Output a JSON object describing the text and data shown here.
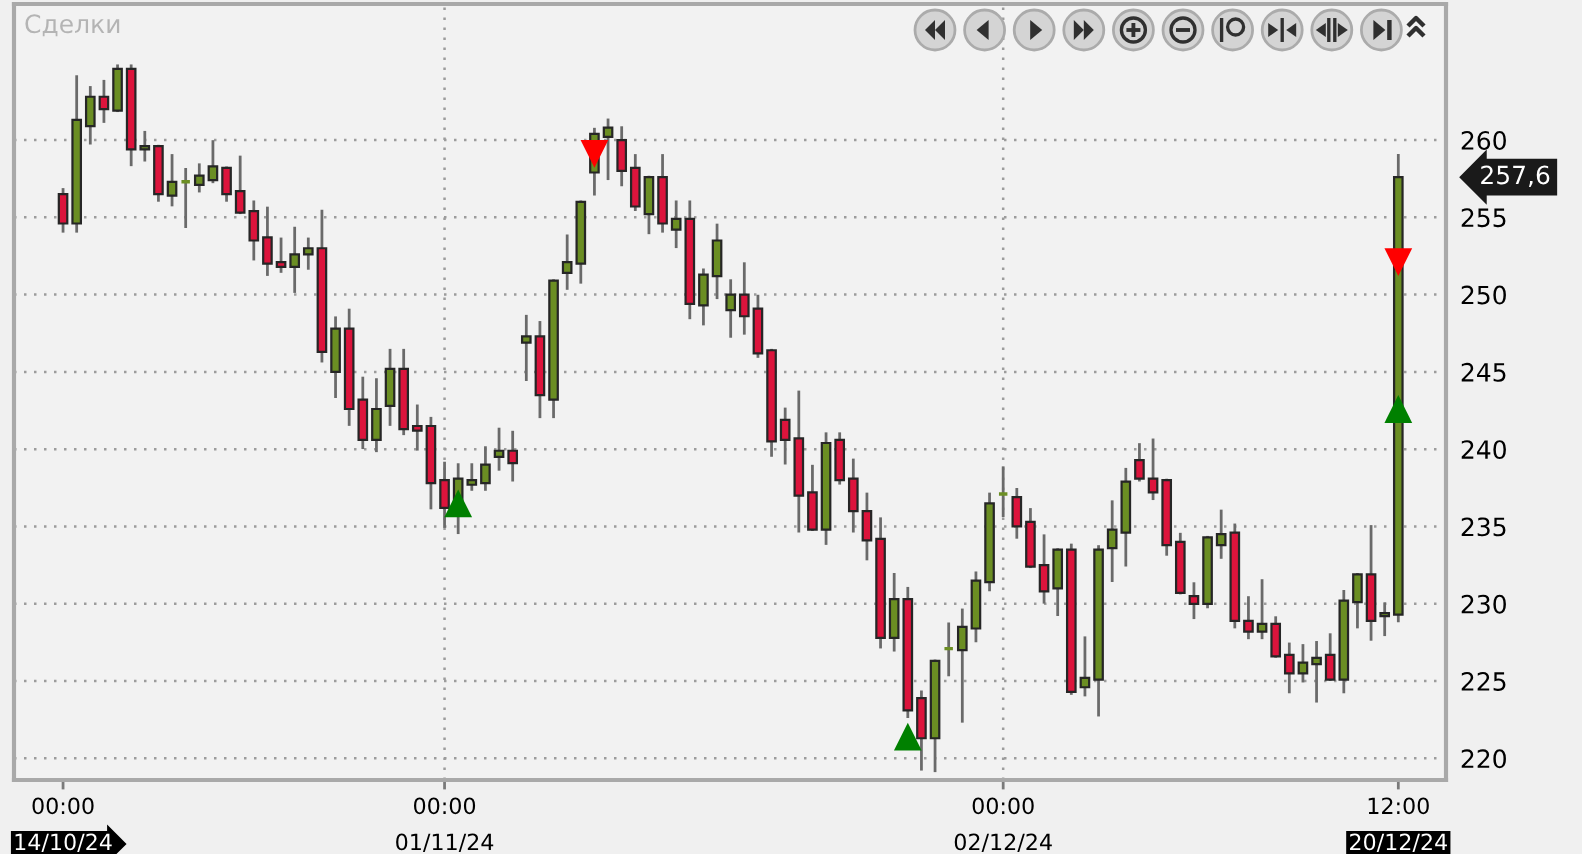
{
  "chart_data": {
    "type": "candlestick",
    "categories": [
      "00:00\n14/10/24",
      null,
      null,
      null,
      null,
      null,
      null,
      null,
      null,
      null,
      null,
      null,
      null,
      null,
      null,
      null,
      null,
      null,
      null,
      null,
      null,
      null,
      null,
      null,
      null,
      null,
      null,
      null,
      "00:00\n01/11/24",
      null,
      null,
      null,
      null,
      null,
      null,
      null,
      null,
      null,
      null,
      null,
      null,
      null,
      null,
      null,
      null,
      null,
      null,
      null,
      null,
      null,
      null,
      null,
      null,
      null,
      null,
      null,
      null,
      null,
      null,
      null,
      null,
      null,
      null,
      null,
      null,
      null,
      null,
      null,
      null,
      "00:00\n02/12/24",
      null,
      null,
      null,
      null,
      null,
      null,
      null,
      null,
      null,
      null,
      null,
      null,
      null,
      null,
      null,
      null,
      null,
      null,
      null,
      null,
      null,
      null,
      null,
      null,
      null,
      null,
      null,
      null,
      "12:00\n20/12/24"
    ],
    "ohlc": [
      [
        256.5,
        256.8,
        254.1,
        254.6
      ],
      [
        254.6,
        264.1,
        254.1,
        261.3
      ],
      [
        260.9,
        263.4,
        259.8,
        262.8
      ],
      [
        262.8,
        263.8,
        261.2,
        262.0
      ],
      [
        261.9,
        264.8,
        261.9,
        264.6
      ],
      [
        264.6,
        264.8,
        258.4,
        259.4
      ],
      [
        259.4,
        260.5,
        258.7,
        259.6
      ],
      [
        259.6,
        259.6,
        256.1,
        256.5
      ],
      [
        256.4,
        259.0,
        255.8,
        257.3
      ],
      [
        257.3,
        258.1,
        254.4,
        257.3
      ],
      [
        257.1,
        258.4,
        256.7,
        257.7
      ],
      [
        257.4,
        259.9,
        257.3,
        258.3
      ],
      [
        258.2,
        258.2,
        256.1,
        256.5
      ],
      [
        256.7,
        258.9,
        255.3,
        255.3
      ],
      [
        255.4,
        256.0,
        252.3,
        253.5
      ],
      [
        253.7,
        255.6,
        251.3,
        252.0
      ],
      [
        252.1,
        253.6,
        251.5,
        251.8
      ],
      [
        251.8,
        254.3,
        250.2,
        252.6
      ],
      [
        252.6,
        253.6,
        251.7,
        253.0
      ],
      [
        253.0,
        255.4,
        245.7,
        246.3
      ],
      [
        245.0,
        248.5,
        243.4,
        247.8
      ],
      [
        247.8,
        249.0,
        241.6,
        242.6
      ],
      [
        243.2,
        244.6,
        240.1,
        240.6
      ],
      [
        240.6,
        244.5,
        239.9,
        242.6
      ],
      [
        242.8,
        246.4,
        241.6,
        245.2
      ],
      [
        245.2,
        246.4,
        241.0,
        241.3
      ],
      [
        241.5,
        242.8,
        240.0,
        241.2
      ],
      [
        241.5,
        242.0,
        236.2,
        237.8
      ],
      [
        238.0,
        239.1,
        235.0,
        236.2
      ],
      [
        236.4,
        239.0,
        234.6,
        238.1
      ],
      [
        237.7,
        239.0,
        237.4,
        238.0
      ],
      [
        237.8,
        240.1,
        237.4,
        239.0
      ],
      [
        239.5,
        241.3,
        238.7,
        239.9
      ],
      [
        239.9,
        241.1,
        238.0,
        239.1
      ],
      [
        246.9,
        248.6,
        244.5,
        247.3
      ],
      [
        247.3,
        248.2,
        242.1,
        243.5
      ],
      [
        243.2,
        250.9,
        242.1,
        250.9
      ],
      [
        251.4,
        253.8,
        250.4,
        252.1
      ],
      [
        252.0,
        256.0,
        250.8,
        256.0
      ],
      [
        257.9,
        260.7,
        256.5,
        260.4
      ],
      [
        260.2,
        261.3,
        257.5,
        260.8
      ],
      [
        260.0,
        260.8,
        257.1,
        258.0
      ],
      [
        258.2,
        259.0,
        255.5,
        255.7
      ],
      [
        255.2,
        257.6,
        254.0,
        257.6
      ],
      [
        257.6,
        259.0,
        254.1,
        254.6
      ],
      [
        254.2,
        256.0,
        253.1,
        254.9
      ],
      [
        254.9,
        256.0,
        248.5,
        249.4
      ],
      [
        249.3,
        251.6,
        248.1,
        251.3
      ],
      [
        251.2,
        254.5,
        249.8,
        253.5
      ],
      [
        249.0,
        250.9,
        247.3,
        250.0
      ],
      [
        250.0,
        252.0,
        247.5,
        248.6
      ],
      [
        249.1,
        249.9,
        246.0,
        246.2
      ],
      [
        246.4,
        246.4,
        239.6,
        240.5
      ],
      [
        241.9,
        242.6,
        239.1,
        240.6
      ],
      [
        240.7,
        243.7,
        234.7,
        237.0
      ],
      [
        237.2,
        238.9,
        234.8,
        234.8
      ],
      [
        234.8,
        241.0,
        233.9,
        240.4
      ],
      [
        240.6,
        241.0,
        237.8,
        238.0
      ],
      [
        238.1,
        239.3,
        234.7,
        236.0
      ],
      [
        236.0,
        237.1,
        232.9,
        234.1
      ],
      [
        234.2,
        235.5,
        227.2,
        227.8
      ],
      [
        227.8,
        231.9,
        227.0,
        230.3
      ],
      [
        230.3,
        231.0,
        222.7,
        223.1
      ],
      [
        223.9,
        224.3,
        219.3,
        221.3
      ],
      [
        221.3,
        226.3,
        219.2,
        226.3
      ],
      [
        227.1,
        228.7,
        225.4,
        227.1
      ],
      [
        227.0,
        229.6,
        222.4,
        228.5
      ],
      [
        228.4,
        232.0,
        227.6,
        231.5
      ],
      [
        231.4,
        237.1,
        230.9,
        236.5
      ],
      [
        237.1,
        238.8,
        235.7,
        237.1
      ],
      [
        236.9,
        237.4,
        234.3,
        235.0
      ],
      [
        235.3,
        236.1,
        232.4,
        232.4
      ],
      [
        232.5,
        234.4,
        230.1,
        230.8
      ],
      [
        231.0,
        233.5,
        229.3,
        233.5
      ],
      [
        233.5,
        233.8,
        224.2,
        224.3
      ],
      [
        224.6,
        227.8,
        224.1,
        225.2
      ],
      [
        225.1,
        233.7,
        222.8,
        233.5
      ],
      [
        233.6,
        236.6,
        231.5,
        234.8
      ],
      [
        234.6,
        238.7,
        232.5,
        237.9
      ],
      [
        239.3,
        240.3,
        238.0,
        238.1
      ],
      [
        238.1,
        240.6,
        236.8,
        237.2
      ],
      [
        238.0,
        238.0,
        233.2,
        233.8
      ],
      [
        234.0,
        234.5,
        230.7,
        230.7
      ],
      [
        230.5,
        231.3,
        229.1,
        230.0
      ],
      [
        230.0,
        234.3,
        229.8,
        234.3
      ],
      [
        233.8,
        236.0,
        233.0,
        234.5
      ],
      [
        234.6,
        235.1,
        228.5,
        228.9
      ],
      [
        228.9,
        230.4,
        227.8,
        228.2
      ],
      [
        228.2,
        231.5,
        227.8,
        228.7
      ],
      [
        228.7,
        229.1,
        226.6,
        226.6
      ],
      [
        226.7,
        227.4,
        224.3,
        225.5
      ],
      [
        225.5,
        227.3,
        225.0,
        226.2
      ],
      [
        226.1,
        227.5,
        223.7,
        226.5
      ],
      [
        226.7,
        228.0,
        225.1,
        225.1
      ],
      [
        225.1,
        230.8,
        224.3,
        230.2
      ],
      [
        230.1,
        231.9,
        228.5,
        231.9
      ],
      [
        231.9,
        235.0,
        227.7,
        228.9
      ],
      [
        229.2,
        230.0,
        228.0,
        229.4
      ],
      [
        229.3,
        259.0,
        228.9,
        257.6
      ]
    ],
    "colors": [
      "#dc143c",
      "#6b8e23",
      "#6b8e23",
      "#dc143c",
      "#6b8e23",
      "#dc143c",
      "#6b8e23",
      "#dc143c",
      "#6b8e23",
      "#6b8e23",
      "#6b8e23",
      "#6b8e23",
      "#dc143c",
      "#dc143c",
      "#dc143c",
      "#dc143c",
      "#dc143c",
      "#6b8e23",
      "#6b8e23",
      "#dc143c",
      "#6b8e23",
      "#dc143c",
      "#dc143c",
      "#6b8e23",
      "#6b8e23",
      "#dc143c",
      "#dc143c",
      "#dc143c",
      "#dc143c",
      "#6b8e23",
      "#6b8e23",
      "#6b8e23",
      "#6b8e23",
      "#dc143c",
      "#6b8e23",
      "#dc143c",
      "#6b8e23",
      "#6b8e23",
      "#6b8e23",
      "#6b8e23",
      "#6b8e23",
      "#dc143c",
      "#dc143c",
      "#6b8e23",
      "#dc143c",
      "#6b8e23",
      "#dc143c",
      "#6b8e23",
      "#6b8e23",
      "#6b8e23",
      "#dc143c",
      "#dc143c",
      "#dc143c",
      "#dc143c",
      "#dc143c",
      "#dc143c",
      "#6b8e23",
      "#dc143c",
      "#dc143c",
      "#dc143c",
      "#dc143c",
      "#6b8e23",
      "#dc143c",
      "#dc143c",
      "#6b8e23",
      "#6b8e23",
      "#6b8e23",
      "#6b8e23",
      "#6b8e23",
      "#6b8e23",
      "#dc143c",
      "#dc143c",
      "#dc143c",
      "#6b8e23",
      "#dc143c",
      "#6b8e23",
      "#6b8e23",
      "#6b8e23",
      "#6b8e23",
      "#dc143c",
      "#dc143c",
      "#dc143c",
      "#dc143c",
      "#dc143c",
      "#6b8e23",
      "#6b8e23",
      "#dc143c",
      "#dc143c",
      "#6b8e23",
      "#dc143c",
      "#dc143c",
      "#6b8e23",
      "#6b8e23",
      "#dc143c",
      "#6b8e23",
      "#6b8e23",
      "#dc143c",
      "#6b8e23",
      "#6b8e23"
    ],
    "series": [
      {
        "type": "scatter",
        "marker": "triangle",
        "color": "#008000",
        "values": [
          null,
          null,
          null,
          null,
          null,
          null,
          null,
          null,
          null,
          null,
          null,
          null,
          null,
          null,
          null,
          null,
          null,
          null,
          null,
          null,
          null,
          null,
          null,
          null,
          null,
          null,
          null,
          null,
          null,
          236.5,
          null,
          null,
          null,
          null,
          null,
          null,
          null,
          null,
          null,
          null,
          null,
          null,
          null,
          null,
          null,
          null,
          null,
          null,
          null,
          null,
          null,
          null,
          null,
          null,
          null,
          null,
          null,
          null,
          null,
          null,
          null,
          null,
          221.4,
          null,
          null,
          null,
          null,
          null,
          null,
          null,
          null,
          null,
          null,
          null,
          null,
          null,
          null,
          null,
          null,
          null,
          null,
          null,
          null,
          null,
          null,
          null,
          null,
          null,
          null,
          null,
          null,
          null,
          null,
          null,
          null,
          null,
          null,
          null,
          242.6
        ]
      },
      {
        "type": "scatter",
        "marker": "triangle",
        "color": "#ff0000",
        "values": [
          null,
          null,
          null,
          null,
          null,
          null,
          null,
          null,
          null,
          null,
          null,
          null,
          null,
          null,
          null,
          null,
          null,
          null,
          null,
          null,
          null,
          null,
          null,
          null,
          null,
          null,
          null,
          null,
          null,
          null,
          null,
          null,
          null,
          null,
          null,
          null,
          null,
          null,
          null,
          259.1,
          null,
          null,
          null,
          null,
          null,
          null,
          null,
          null,
          null,
          null,
          null,
          null,
          null,
          null,
          null,
          null,
          null,
          null,
          null,
          null,
          null,
          null,
          null,
          null,
          null,
          null,
          null,
          null,
          null,
          null,
          null,
          null,
          null,
          null,
          null,
          null,
          null,
          null,
          null,
          null,
          null,
          null,
          null,
          null,
          null,
          null,
          null,
          null,
          null,
          null,
          null,
          null,
          null,
          null,
          null,
          null,
          null,
          null,
          252.1
        ]
      }
    ],
    "ylim": [
      218.6,
      268.8
    ],
    "yticks": [
      220,
      225,
      230,
      235,
      240,
      245,
      250,
      255,
      260
    ],
    "grid": true,
    "annotations": [
      "Сделки",
      "257,6"
    ]
  }
}
